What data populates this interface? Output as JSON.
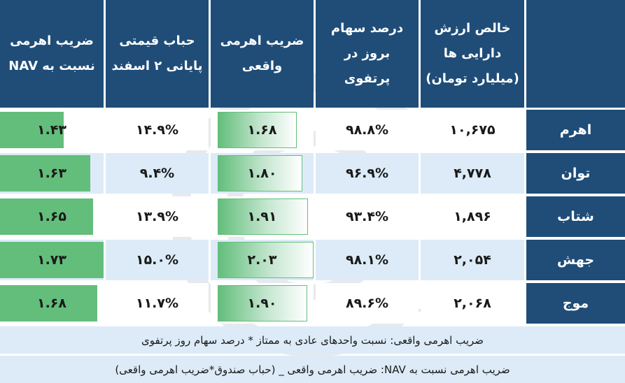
{
  "chart_data": {
    "type": "table",
    "watermark_text": "AVAYEAGAH",
    "columns": [
      "خالص ارزش\nدارایی ها\n(میلیارد تومان)",
      "درصد سهام\nبروز در پرتفوی",
      "ضریب اهرمی\nواقعی",
      "حباب قیمتی\nپایانی ۲ اسفند",
      "ضریب اهرمی\nنسبت به NAV"
    ],
    "rows": [
      {
        "name": "اهرم",
        "nav": "۱۰,۶۷۵",
        "stock_pct": "۹۸.۸%",
        "leverage": "۱.۶۸",
        "bubble": "۱۴.۹%",
        "nav_leverage": "۱.۴۳"
      },
      {
        "name": "توان",
        "nav": "۴,۷۷۸",
        "stock_pct": "۹۶.۹%",
        "leverage": "۱.۸۰",
        "bubble": "۹.۴%",
        "nav_leverage": "۱.۶۳"
      },
      {
        "name": "شتاب",
        "nav": "۱,۸۹۶",
        "stock_pct": "۹۳.۴%",
        "leverage": "۱.۹۱",
        "bubble": "۱۳.۹%",
        "nav_leverage": "۱.۶۵"
      },
      {
        "name": "جهش",
        "nav": "۲,۰۵۴",
        "stock_pct": "۹۸.۱%",
        "leverage": "۲.۰۳",
        "bubble": "۱۵.۰%",
        "nav_leverage": "۱.۷۳"
      },
      {
        "name": "موج",
        "nav": "۲,۰۶۸",
        "stock_pct": "۸۹.۶%",
        "leverage": "۱.۹۰",
        "bubble": "۱۱.۷%",
        "nav_leverage": "۱.۶۸"
      }
    ],
    "leverage_values": [
      1.68,
      1.8,
      1.91,
      2.03,
      1.9
    ],
    "nav_leverage_values": [
      1.43,
      1.63,
      1.65,
      1.73,
      1.68
    ],
    "footnotes": [
      "ضریب اهرمی واقعی: نسبت واحدهای عادی به ممتاز * درصد سهام روز پرتفوی",
      "ضریب اهرمی نسبت به NAV: ضریب اهرمی واقعی _ (حباب صندوق*ضریب اهرمی واقعی)"
    ],
    "colors": {
      "header": "#1f4d78",
      "zebra": "#dcebf7",
      "databar": "#63be7b"
    }
  }
}
